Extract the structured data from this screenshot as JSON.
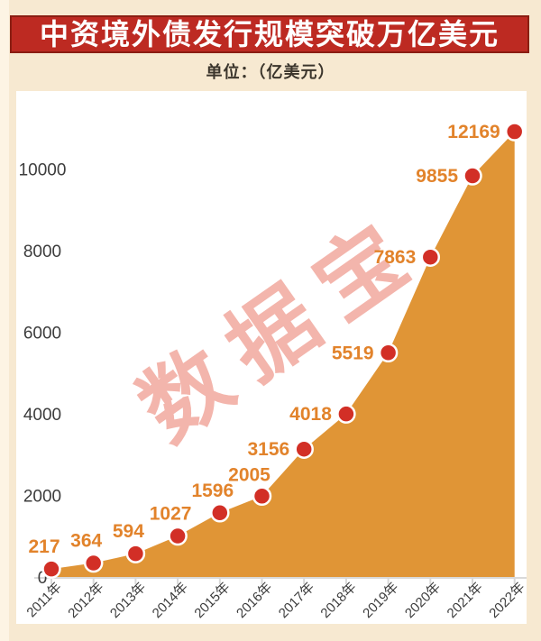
{
  "header": {
    "title": "中资境外债发行规模突破万亿美元",
    "unit_label": "单位：（亿美元）"
  },
  "watermark": "数据宝",
  "chart_data": {
    "type": "area",
    "title": "中资境外债发行规模突破万亿美元",
    "unit": "亿美元",
    "categories": [
      "2011年",
      "2012年",
      "2013年",
      "2014年",
      "2015年",
      "2016年",
      "2017年",
      "2018年",
      "2019年",
      "2020年",
      "2021年",
      "2022年"
    ],
    "values": [
      217,
      364,
      594,
      1027,
      1596,
      2005,
      3156,
      4018,
      5519,
      7863,
      9855,
      12169
    ],
    "xlabel": "",
    "ylabel": "",
    "y_ticks": [
      0,
      2000,
      4000,
      6000,
      8000,
      10000
    ],
    "ylim": [
      0,
      12250
    ],
    "grid": false,
    "legend": false,
    "point_labels_shown": true,
    "colors": {
      "background": "#f7e9d1",
      "panel_bg": "#ffffff",
      "banner_bg": "#bd2a22",
      "banner_border": "#8a1e12",
      "banner_text": "#ffffff",
      "unit_text": "#3b352c",
      "area_fill": "#e09536",
      "point_fill": "#d22f26",
      "point_stroke": "#ffffff",
      "data_label": "#e2832b",
      "axis_text": "#3c3c3c",
      "axis_line": "#d9d9d9",
      "watermark": "#f3b5ac"
    }
  }
}
